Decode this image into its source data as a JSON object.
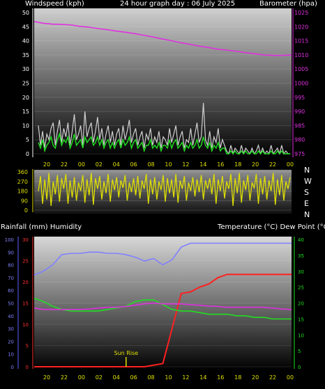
{
  "header": {
    "left_title": "Windspeed (kph)",
    "center_title": "24 hour graph day : 06 July 2025",
    "right_title": "Barometer (hpa)"
  },
  "lower_header": {
    "left_title": "Rainfall (mm)  Humidity",
    "right_title": "Temperature (°C) Dew Point (°C)"
  },
  "compass": {
    "north": "N",
    "west": "W",
    "south": "S",
    "east": "E",
    "north2": "N"
  },
  "sunrise_label": "Sun Rise",
  "colors": {
    "wind_gust": "#d0d0d0",
    "wind_avg": "#20e020",
    "pressure": "#e030e0",
    "direction": "#e0e000",
    "temperature": "#ff2020",
    "dewpoint": "#20e020",
    "humidity": "#8080ff",
    "rain": "#e030e0",
    "rain_axis": "#ff3030",
    "hum_axis": "#6060ff",
    "temp_axis": "#20e020"
  },
  "chart_data": [
    {
      "type": "line",
      "name": "wind_and_pressure",
      "x_ticks": [
        "20",
        "22",
        "00",
        "02",
        "04",
        "06",
        "08",
        "10",
        "12",
        "14",
        "16",
        "18",
        "20",
        "22",
        "00"
      ],
      "ylim_left": [
        0,
        50
      ],
      "yticks_left": [
        "0",
        "5",
        "10",
        "15",
        "20",
        "25",
        "30",
        "35",
        "40",
        "45",
        "50"
      ],
      "ylim_right": [
        975,
        1025
      ],
      "yticks_right": [
        "975",
        "980",
        "985",
        "990",
        "995",
        "1000",
        "1005",
        "1010",
        "1015",
        "1020",
        "1025"
      ],
      "series": [
        {
          "key": "gust",
          "values": [
            10,
            3,
            8,
            2,
            7,
            5,
            9,
            11,
            3,
            8,
            12,
            4,
            9,
            6,
            11,
            3,
            8,
            14,
            5,
            7,
            10,
            3,
            15,
            6,
            9,
            11,
            4,
            8,
            13,
            5,
            9,
            3,
            7,
            10,
            4,
            8,
            3,
            7,
            9,
            3,
            10,
            5,
            8,
            12,
            4,
            7,
            9,
            3,
            6,
            8,
            2,
            7,
            5,
            9,
            3,
            6,
            4,
            8,
            2,
            6,
            5,
            3,
            9,
            4,
            7,
            10,
            3,
            6,
            8,
            2,
            5,
            4,
            9,
            3,
            7,
            11,
            4,
            6,
            18,
            5,
            3,
            8,
            2,
            6,
            4,
            9,
            2,
            5,
            3,
            1,
            0,
            3,
            0,
            2,
            1,
            0,
            3,
            0,
            2,
            1,
            0,
            2,
            0,
            1,
            3,
            0,
            2,
            0,
            1,
            0,
            3,
            0,
            1,
            2,
            0,
            3,
            0,
            1,
            0,
            0
          ]
        },
        {
          "key": "wind_avg",
          "values": [
            4,
            2,
            5,
            1,
            3,
            4,
            6,
            3,
            2,
            5,
            7,
            3,
            5,
            4,
            6,
            2,
            4,
            7,
            3,
            4,
            5,
            2,
            6,
            4,
            5,
            6,
            3,
            4,
            6,
            3,
            5,
            2,
            4,
            5,
            2,
            4,
            2,
            4,
            5,
            2,
            5,
            3,
            4,
            6,
            2,
            4,
            5,
            2,
            3,
            4,
            1,
            3,
            3,
            5,
            2,
            3,
            2,
            4,
            1,
            3,
            3,
            2,
            5,
            2,
            4,
            5,
            2,
            3,
            4,
            1,
            3,
            2,
            4,
            2,
            3,
            5,
            2,
            3,
            6,
            3,
            2,
            4,
            1,
            3,
            2,
            4,
            1,
            2,
            2,
            0,
            0,
            1,
            0,
            1,
            0,
            0,
            1,
            0,
            1,
            0,
            0,
            1,
            0,
            0,
            1,
            0,
            1,
            0,
            0,
            0,
            1,
            0,
            0,
            1,
            0,
            1,
            0,
            0,
            0,
            0
          ]
        },
        {
          "key": "pressure",
          "x_hours": [
            0,
            1,
            2,
            3,
            4,
            5,
            6,
            7,
            8,
            9,
            10,
            11,
            12,
            13,
            14,
            15,
            16,
            17,
            18,
            19,
            20,
            21,
            22,
            23,
            24,
            25,
            26,
            27,
            28
          ],
          "values": [
            1021.8,
            1021.2,
            1020.9,
            1020.8,
            1020.6,
            1020.1,
            1019.8,
            1019.3,
            1018.9,
            1018.4,
            1018.0,
            1017.5,
            1016.9,
            1016.3,
            1015.6,
            1015.0,
            1014.3,
            1013.7,
            1013.1,
            1012.6,
            1012.0,
            1011.7,
            1011.3,
            1010.8,
            1010.4,
            1010.0,
            1009.8,
            1009.8,
            1010.0
          ]
        }
      ]
    },
    {
      "type": "line",
      "name": "wind_direction",
      "ylim": [
        0,
        360
      ],
      "yticks": [
        "0",
        "90",
        "180",
        "270",
        "360"
      ],
      "x_ticks": [
        "20",
        "22",
        "00",
        "02",
        "04",
        "06",
        "08",
        "10",
        "12",
        "14",
        "16",
        "18",
        "20",
        "22",
        "00"
      ],
      "values": [
        180,
        320,
        60,
        290,
        100,
        350,
        40,
        270,
        150,
        330,
        80,
        300,
        200,
        340,
        60,
        280,
        120,
        310,
        90,
        260,
        180,
        330,
        70,
        290,
        140,
        350,
        50,
        300,
        200,
        320,
        100,
        270,
        160,
        340,
        80,
        290,
        190,
        310,
        120,
        280,
        210,
        330,
        90,
        260,
        170,
        300,
        140,
        320,
        110,
        280,
        200,
        340,
        60,
        290,
        150,
        310,
        100,
        270,
        190,
        330,
        80,
        300,
        160,
        290,
        120,
        340,
        70,
        280,
        200,
        320,
        90,
        260,
        180,
        310,
        130,
        290,
        170,
        330,
        100,
        280,
        200,
        300,
        150,
        340,
        60,
        290,
        180,
        320,
        110,
        270,
        200,
        340,
        40,
        300,
        160,
        350,
        70,
        280,
        190,
        330,
        90,
        260,
        210,
        340,
        60,
        300,
        150,
        320,
        100,
        280,
        180,
        350,
        50,
        290,
        140,
        330,
        90,
        270,
        200,
        310
      ]
    },
    {
      "type": "line",
      "name": "temperature_humidity_rain",
      "x_ticks": [
        "20",
        "22",
        "00",
        "02",
        "04",
        "06",
        "08",
        "10",
        "12",
        "14",
        "16",
        "18",
        "20",
        "22",
        "00"
      ],
      "ylim_humidity": [
        0,
        100
      ],
      "yticks_humidity": [
        "0",
        "10",
        "20",
        "30",
        "40",
        "50",
        "60",
        "70",
        "80",
        "90",
        "100"
      ],
      "ylim_rain": [
        0,
        30
      ],
      "yticks_rain": [
        "0",
        "5",
        "10",
        "15",
        "20",
        "25",
        "30"
      ],
      "ylim_temp": [
        0,
        40
      ],
      "yticks_temp": [
        "0",
        "5",
        "10",
        "15",
        "20",
        "25",
        "30",
        "35",
        "40"
      ],
      "x_hours": [
        0,
        1,
        2,
        3,
        4,
        5,
        6,
        7,
        8,
        9,
        10,
        11,
        12,
        13,
        14,
        15,
        16,
        17,
        18,
        19,
        20,
        21,
        22,
        23,
        24,
        25,
        26,
        27,
        28
      ],
      "series": [
        {
          "key": "humidity",
          "values": [
            72,
            75,
            80,
            88,
            89,
            89,
            90,
            90,
            89,
            89,
            88,
            86,
            83,
            85,
            80,
            84,
            94,
            97,
            97,
            97,
            97,
            97,
            97,
            97,
            97,
            97,
            97,
            97,
            97
          ]
        },
        {
          "key": "temperature",
          "values": [
            0,
            0,
            0,
            0,
            0,
            0,
            0,
            0,
            0,
            0,
            0,
            0,
            0,
            0.5,
            1,
            12,
            23,
            23.5,
            25,
            26,
            28,
            29,
            29,
            29,
            29,
            29,
            29,
            29,
            29
          ]
        },
        {
          "key": "dewpoint",
          "values": [
            21.5,
            20.5,
            19,
            18,
            17.5,
            17.5,
            17.5,
            17.5,
            18,
            18.5,
            19,
            20.5,
            21,
            21,
            19.5,
            18,
            17.5,
            17.5,
            17,
            16.5,
            16.5,
            16.5,
            16,
            16,
            15.5,
            15.5,
            15,
            15,
            15
          ]
        },
        {
          "key": "rain",
          "values": [
            13.8,
            13.5,
            13.5,
            13.5,
            13.5,
            13.5,
            13.6,
            13.8,
            14,
            14,
            14.2,
            14.5,
            14.8,
            15,
            14.8,
            14.8,
            14.8,
            14.6,
            14.5,
            14.3,
            14.2,
            14,
            14,
            14,
            14,
            14,
            13.8,
            13.6,
            13.5
          ]
        }
      ],
      "sunrise_hour": 10
    }
  ]
}
